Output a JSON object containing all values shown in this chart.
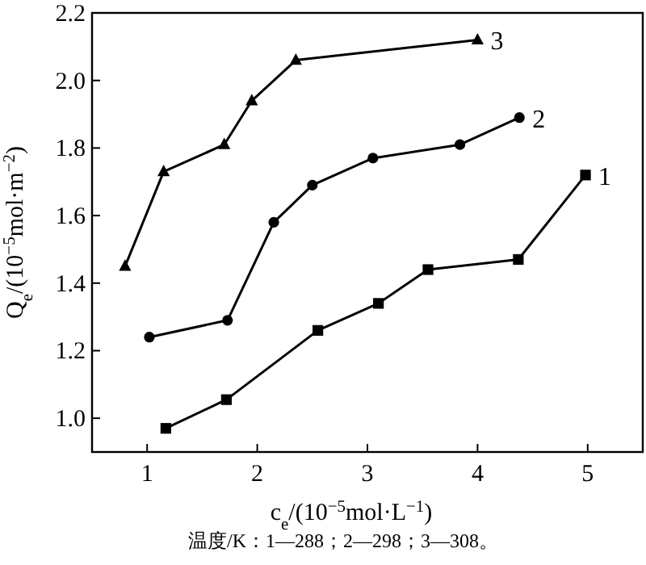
{
  "chart_data": {
    "type": "line",
    "xlabel": "c$_{e}$/(10$^{−5}$mol·L$^{−1}$)",
    "ylabel": "Q$_{e}$/(10$^{−5}$mol·m$^{−2}$)",
    "xlim": [
      0.5,
      5.5
    ],
    "xticks": [
      1,
      2,
      3,
      4,
      5
    ],
    "ylim": [
      0.9,
      2.2
    ],
    "yticks": [
      {
        "value": 1.0,
        "label": "1.0"
      },
      {
        "value": 1.2,
        "label": "1.2"
      },
      {
        "value": 1.4,
        "label": "1.4"
      },
      {
        "value": 1.6,
        "label": "1.6"
      },
      {
        "value": 1.8,
        "label": "1.8"
      },
      {
        "value": 2.0,
        "label": "2.0"
      },
      {
        "value": 2.2,
        "label": "2.2"
      }
    ],
    "line_style": "solid",
    "series": [
      {
        "name": "1",
        "color": "#000000",
        "marker": "square",
        "x": [
          1.17,
          1.72,
          2.55,
          3.1,
          3.55,
          4.37,
          4.98
        ],
        "values": [
          0.97,
          1.055,
          1.26,
          1.34,
          1.44,
          1.47,
          1.72
        ]
      },
      {
        "name": "2",
        "color": "#000000",
        "marker": "circle",
        "x": [
          1.02,
          1.73,
          2.15,
          2.5,
          3.05,
          3.84,
          4.38
        ],
        "values": [
          1.24,
          1.29,
          1.58,
          1.69,
          1.77,
          1.81,
          1.89
        ]
      },
      {
        "name": "3",
        "color": "#000000",
        "marker": "triangle",
        "x": [
          0.8,
          1.15,
          1.7,
          1.95,
          2.35,
          4.0
        ],
        "values": [
          1.45,
          1.73,
          1.81,
          1.94,
          2.06,
          2.12
        ]
      }
    ],
    "annotations": [
      "温度/K：1—288；2—298；3—308。"
    ]
  }
}
